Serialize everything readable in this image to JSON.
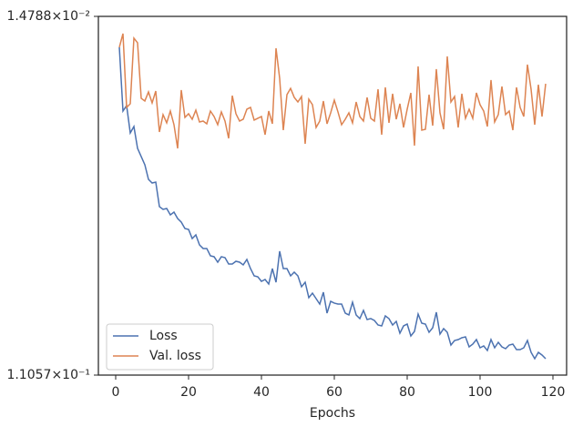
{
  "chart_data": {
    "type": "line",
    "xlabel": "Epochs",
    "log_y": true,
    "legend_loc": "lower left",
    "x": [
      1,
      2,
      3,
      4,
      5,
      6,
      7,
      8,
      9,
      10,
      11,
      12,
      13,
      14,
      15,
      16,
      17,
      18,
      19,
      20,
      21,
      22,
      23,
      24,
      25,
      26,
      27,
      28,
      29,
      30,
      31,
      32,
      33,
      34,
      35,
      36,
      37,
      38,
      39,
      40,
      41,
      42,
      43,
      44,
      45,
      46,
      47,
      48,
      49,
      50,
      51,
      52,
      53,
      54,
      55,
      56,
      57,
      58,
      59,
      60,
      61,
      62,
      63,
      64,
      65,
      66,
      67,
      68,
      69,
      70,
      71,
      72,
      73,
      74,
      75,
      76,
      77,
      78,
      79,
      80,
      81,
      82,
      83,
      84,
      85,
      86,
      87,
      88,
      89,
      90,
      91,
      92,
      93,
      94,
      95,
      96,
      97,
      98,
      99,
      100,
      101,
      102,
      103,
      104,
      105,
      106,
      107,
      108,
      109,
      110,
      111,
      112,
      113,
      114,
      115,
      116,
      117,
      118
    ],
    "series": [
      {
        "name": "Loss",
        "color": "#4c72b0",
        "values": [
          0.01759,
          0.02515,
          0.02439,
          0.02843,
          0.02743,
          0.031,
          0.03246,
          0.03399,
          0.03689,
          0.03765,
          0.03746,
          0.04299,
          0.04365,
          0.04343,
          0.04501,
          0.04433,
          0.04594,
          0.04689,
          0.04859,
          0.04884,
          0.0514,
          0.05036,
          0.05327,
          0.05436,
          0.05436,
          0.05663,
          0.05692,
          0.0587,
          0.05692,
          0.05722,
          0.0593,
          0.0593,
          0.0584,
          0.0587,
          0.0596,
          0.05781,
          0.06084,
          0.06337,
          0.0637,
          0.06535,
          0.06468,
          0.06635,
          0.06084,
          0.06568,
          0.0552,
          0.06084,
          0.06084,
          0.06337,
          0.06209,
          0.06337,
          0.06738,
          0.06568,
          0.07163,
          0.06983,
          0.072,
          0.07424,
          0.06947,
          0.07812,
          0.07311,
          0.07386,
          0.07424,
          0.07424,
          0.07812,
          0.07893,
          0.07348,
          0.07893,
          0.08055,
          0.07694,
          0.08097,
          0.08055,
          0.08138,
          0.08349,
          0.08392,
          0.07933,
          0.08055,
          0.08349,
          0.0818,
          0.08742,
          0.08392,
          0.08307,
          0.08877,
          0.08653,
          0.07852,
          0.08264,
          0.08307,
          0.08698,
          0.08478,
          0.07773,
          0.08787,
          0.08521,
          0.08698,
          0.09342,
          0.09107,
          0.0906,
          0.08968,
          0.08922,
          0.09438,
          0.09294,
          0.0906,
          0.09486,
          0.0939,
          0.09633,
          0.0906,
          0.09486,
          0.092,
          0.09438,
          0.09535,
          0.09342,
          0.09294,
          0.09584,
          0.09584,
          0.09486,
          0.09107,
          0.09731,
          0.10086,
          0.09731,
          0.09882,
          0.10086
        ]
      },
      {
        "name": "Val. loss",
        "color": "#dd8452",
        "values": [
          0.01759,
          0.01629,
          0.02464,
          0.02414,
          0.01671,
          0.01715,
          0.02341,
          0.02377,
          0.02259,
          0.02402,
          0.02248,
          0.02828,
          0.02566,
          0.02687,
          0.02515,
          0.02715,
          0.031,
          0.02236,
          0.02606,
          0.02553,
          0.02633,
          0.02502,
          0.02674,
          0.0266,
          0.02701,
          0.02515,
          0.02593,
          0.02715,
          0.02527,
          0.0266,
          0.02931,
          0.02306,
          0.02553,
          0.0266,
          0.02633,
          0.02489,
          0.02464,
          0.02646,
          0.02619,
          0.02593,
          0.02872,
          0.02515,
          0.02701,
          0.01768,
          0.02093,
          0.02799,
          0.02294,
          0.02214,
          0.02329,
          0.0239,
          0.02318,
          0.03022,
          0.02353,
          0.02427,
          0.02757,
          0.0266,
          0.02377,
          0.02701,
          0.0254,
          0.02365,
          0.02527,
          0.02715,
          0.02633,
          0.0254,
          0.02687,
          0.0239,
          0.02593,
          0.0266,
          0.02329,
          0.02619,
          0.0266,
          0.02225,
          0.02872,
          0.02202,
          0.02687,
          0.02282,
          0.02633,
          0.02414,
          0.02757,
          0.02489,
          0.02271,
          0.03053,
          0.01958,
          0.02799,
          0.02785,
          0.02294,
          0.02729,
          0.01988,
          0.0254,
          0.02785,
          0.01851,
          0.0239,
          0.02318,
          0.02757,
          0.02282,
          0.02619,
          0.02489,
          0.02619,
          0.02271,
          0.02427,
          0.02515,
          0.02743,
          0.02114,
          0.02674,
          0.02566,
          0.02191,
          0.02566,
          0.02515,
          0.02799,
          0.02202,
          0.02464,
          0.02593,
          0.01938,
          0.02225,
          0.02715,
          0.02169,
          0.02593,
          0.02158
        ]
      }
    ],
    "xlim": [
      -4.75,
      123.75
    ],
    "xticks": [
      0,
      20,
      40,
      60,
      80,
      100,
      120
    ],
    "ylim": [
      0.11057,
      0.014788
    ],
    "yticks": [
      {
        "value": 0.014788,
        "label": "1.4788×10⁻²"
      },
      {
        "value": 0.11057,
        "label": "1.1057×10⁻¹"
      }
    ]
  }
}
